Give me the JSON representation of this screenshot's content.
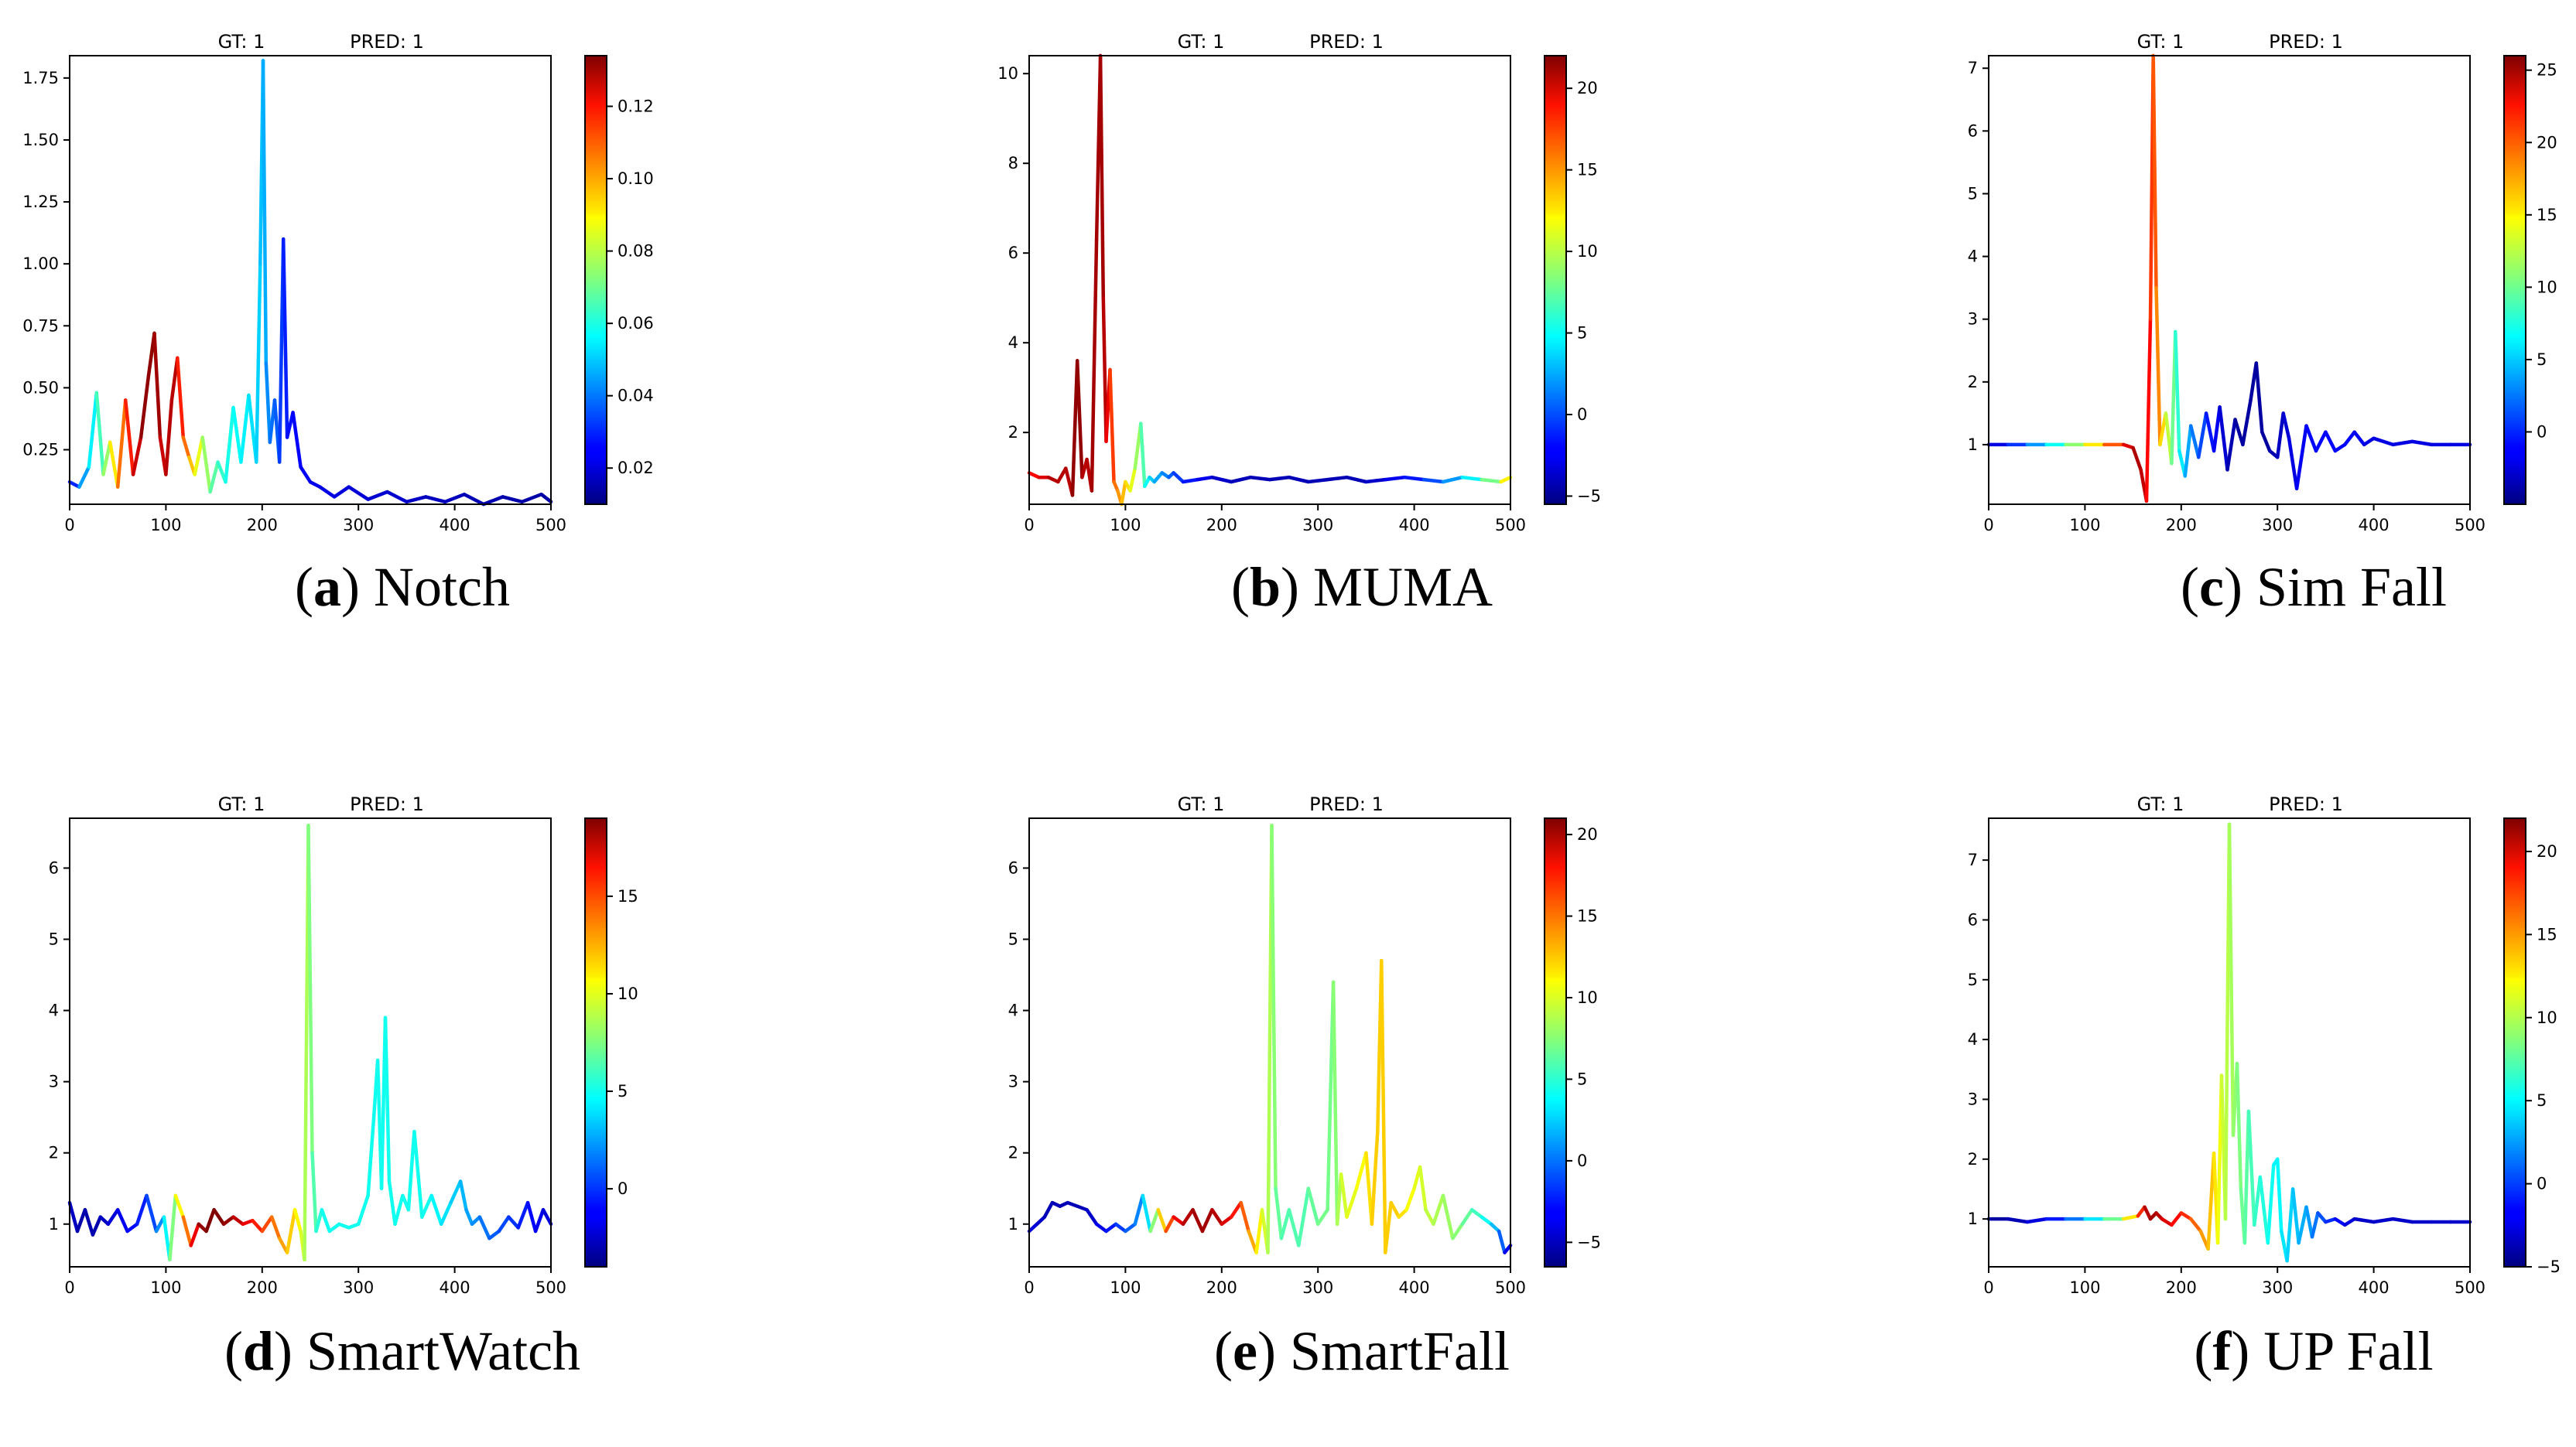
{
  "chart_data": [
    {
      "type": "line",
      "panel": "a",
      "caption": "Notch",
      "title_left": "GT: 1",
      "title_right": "PRED: 1",
      "xlim": [
        0,
        500
      ],
      "ylim": [
        0.03,
        1.84
      ],
      "xticks": [
        "0",
        "100",
        "200",
        "300",
        "400",
        "500"
      ],
      "yticks": [
        0.25,
        0.5,
        0.75,
        1.0,
        1.25,
        1.5,
        1.75
      ],
      "ytick_labels": [
        "0.25",
        "0.50",
        "0.75",
        "1.00",
        "1.25",
        "1.50",
        "1.75"
      ],
      "colorbar": {
        "min": 0.01,
        "max": 0.134,
        "ticks": [
          0.02,
          0.04,
          0.06,
          0.08,
          0.1,
          0.12
        ],
        "tick_labels": [
          "0.02",
          "0.04",
          "0.06",
          "0.08",
          "0.10",
          "0.12"
        ]
      },
      "x": [
        0,
        10,
        20,
        28,
        35,
        42,
        50,
        58,
        66,
        74,
        82,
        88,
        94,
        100,
        106,
        112,
        118,
        124,
        130,
        138,
        146,
        154,
        162,
        170,
        178,
        186,
        194,
        198,
        201,
        204,
        208,
        213,
        218,
        222,
        226,
        232,
        240,
        250,
        260,
        275,
        290,
        310,
        330,
        350,
        370,
        390,
        410,
        430,
        450,
        470,
        490,
        500
      ],
      "y": [
        0.12,
        0.1,
        0.18,
        0.48,
        0.15,
        0.28,
        0.1,
        0.45,
        0.15,
        0.3,
        0.55,
        0.72,
        0.3,
        0.15,
        0.45,
        0.62,
        0.3,
        0.22,
        0.15,
        0.3,
        0.08,
        0.2,
        0.12,
        0.42,
        0.2,
        0.47,
        0.2,
        1.0,
        1.82,
        0.6,
        0.28,
        0.45,
        0.2,
        1.1,
        0.3,
        0.4,
        0.18,
        0.12,
        0.1,
        0.06,
        0.1,
        0.05,
        0.08,
        0.04,
        0.06,
        0.04,
        0.07,
        0.03,
        0.06,
        0.04,
        0.07,
        0.04
      ],
      "c": [
        0.02,
        0.04,
        0.05,
        0.06,
        0.07,
        0.08,
        0.1,
        0.11,
        0.12,
        0.13,
        0.134,
        0.13,
        0.13,
        0.12,
        0.134,
        0.12,
        0.11,
        0.1,
        0.09,
        0.08,
        0.07,
        0.065,
        0.06,
        0.058,
        0.056,
        0.054,
        0.052,
        0.05,
        0.048,
        0.045,
        0.04,
        0.038,
        0.035,
        0.03,
        0.028,
        0.026,
        0.025,
        0.024,
        0.023,
        0.022,
        0.021,
        0.02,
        0.02,
        0.019,
        0.018,
        0.018,
        0.017,
        0.016,
        0.016,
        0.015,
        0.015,
        0.014
      ]
    },
    {
      "type": "line",
      "panel": "b",
      "caption": "MUMA",
      "title_left": "GT: 1",
      "title_right": "PRED: 1",
      "xlim": [
        0,
        500
      ],
      "ylim": [
        0.4,
        10.4
      ],
      "xticks": [
        "0",
        "100",
        "200",
        "300",
        "400",
        "500"
      ],
      "yticks": [
        2,
        4,
        6,
        8,
        10
      ],
      "ytick_labels": [
        "2",
        "4",
        "6",
        "8",
        "10"
      ],
      "colorbar": {
        "min": -5.5,
        "max": 22,
        "ticks": [
          -5,
          0,
          5,
          10,
          15,
          20
        ],
        "tick_labels": [
          "−5",
          "0",
          "5",
          "10",
          "15",
          "20"
        ]
      },
      "x": [
        0,
        10,
        20,
        30,
        38,
        45,
        50,
        55,
        60,
        65,
        70,
        74,
        77,
        80,
        84,
        88,
        92,
        96,
        100,
        105,
        110,
        116,
        120,
        125,
        130,
        138,
        145,
        150,
        160,
        175,
        190,
        210,
        230,
        250,
        270,
        290,
        310,
        330,
        350,
        370,
        390,
        410,
        430,
        450,
        470,
        490,
        500
      ],
      "y": [
        1.1,
        1.0,
        1.0,
        0.9,
        1.2,
        0.6,
        3.6,
        1.0,
        1.4,
        0.7,
        6.3,
        10.4,
        5.0,
        1.8,
        3.4,
        0.9,
        0.7,
        0.4,
        0.9,
        0.7,
        1.2,
        2.2,
        0.8,
        1.0,
        0.9,
        1.1,
        1.0,
        1.1,
        0.9,
        0.95,
        1.0,
        0.9,
        1.0,
        0.95,
        1.0,
        0.9,
        0.95,
        1.0,
        0.9,
        0.95,
        1.0,
        0.95,
        0.9,
        1.0,
        0.95,
        0.9,
        1.0
      ],
      "c": [
        18,
        19,
        20,
        21,
        20,
        21,
        22,
        21,
        20,
        21,
        21,
        21,
        21,
        20,
        18,
        16,
        15,
        14,
        13,
        12,
        10,
        8,
        6,
        4,
        3,
        2,
        1,
        0,
        -1,
        -2,
        -3,
        -4,
        -4,
        -4,
        -4,
        -4,
        -4,
        -4,
        -4,
        -3,
        -2,
        -1,
        1,
        3,
        6,
        10,
        14
      ]
    },
    {
      "type": "line",
      "panel": "c",
      "caption": "Sim Fall",
      "title_left": "GT: 1",
      "title_right": "PRED: 1",
      "xlim": [
        0,
        500
      ],
      "ylim": [
        0.05,
        7.2
      ],
      "xticks": [
        "0",
        "100",
        "200",
        "300",
        "400",
        "500"
      ],
      "yticks": [
        1,
        2,
        3,
        4,
        5,
        6,
        7
      ],
      "ytick_labels": [
        "1",
        "2",
        "3",
        "4",
        "5",
        "6",
        "7"
      ],
      "colorbar": {
        "min": -5,
        "max": 26,
        "ticks": [
          0,
          5,
          10,
          15,
          20,
          25
        ],
        "tick_labels": [
          "0",
          "5",
          "10",
          "15",
          "20",
          "25"
        ]
      },
      "x": [
        0,
        20,
        40,
        60,
        80,
        100,
        120,
        140,
        150,
        158,
        164,
        168,
        171,
        174,
        178,
        184,
        190,
        194,
        198,
        204,
        210,
        218,
        226,
        234,
        240,
        248,
        256,
        264,
        272,
        278,
        284,
        292,
        300,
        306,
        312,
        320,
        330,
        340,
        350,
        360,
        370,
        380,
        390,
        400,
        420,
        440,
        460,
        480,
        500
      ],
      "y": [
        1.0,
        1.0,
        1.0,
        1.0,
        1.0,
        1.0,
        1.0,
        1.0,
        0.95,
        0.6,
        0.1,
        3.0,
        7.2,
        3.5,
        1.0,
        1.5,
        0.7,
        2.8,
        0.9,
        0.5,
        1.3,
        0.8,
        1.5,
        0.9,
        1.6,
        0.6,
        1.4,
        1.0,
        1.7,
        2.3,
        1.2,
        0.9,
        0.8,
        1.5,
        1.1,
        0.3,
        1.3,
        0.9,
        1.2,
        0.9,
        1.0,
        1.2,
        1.0,
        1.1,
        1.0,
        1.05,
        1.0,
        1.0,
        1.0
      ],
      "c": [
        -3,
        -1,
        2,
        5,
        9,
        13,
        17,
        22,
        24,
        25,
        23,
        21,
        20,
        19,
        17,
        14,
        11,
        9,
        7,
        5,
        3,
        2,
        0,
        -1,
        -2,
        -3,
        -4,
        -4,
        -4,
        -4,
        -4,
        -4,
        -3,
        -3,
        -2,
        -2,
        -1,
        -1,
        -1,
        -1,
        -1,
        -1,
        -2,
        -2,
        -2,
        -2,
        -2,
        -2,
        -2
      ]
    },
    {
      "type": "line",
      "panel": "d",
      "caption": "SmartWatch",
      "title_left": "GT: 1",
      "title_right": "PRED: 1",
      "xlim": [
        0,
        500
      ],
      "ylim": [
        0.4,
        6.7
      ],
      "xticks": [
        "0",
        "100",
        "200",
        "300",
        "400",
        "500"
      ],
      "yticks": [
        1,
        2,
        3,
        4,
        5,
        6
      ],
      "ytick_labels": [
        "1",
        "2",
        "3",
        "4",
        "5",
        "6"
      ],
      "colorbar": {
        "min": -4,
        "max": 19,
        "ticks": [
          0,
          5,
          10,
          15
        ],
        "tick_labels": [
          "0",
          "5",
          "10",
          "15"
        ]
      },
      "x": [
        0,
        8,
        16,
        24,
        32,
        40,
        50,
        60,
        70,
        80,
        90,
        98,
        104,
        110,
        118,
        126,
        134,
        142,
        150,
        160,
        170,
        180,
        190,
        200,
        210,
        218,
        226,
        234,
        240,
        244,
        248,
        252,
        256,
        262,
        270,
        280,
        290,
        300,
        310,
        316,
        320,
        324,
        328,
        332,
        338,
        346,
        352,
        358,
        366,
        376,
        386,
        396,
        406,
        412,
        418,
        426,
        436,
        446,
        456,
        466,
        476,
        484,
        492,
        500
      ],
      "y": [
        1.3,
        0.9,
        1.2,
        0.85,
        1.1,
        1.0,
        1.2,
        0.9,
        1.0,
        1.4,
        0.9,
        1.1,
        0.5,
        1.4,
        1.1,
        0.7,
        1.0,
        0.9,
        1.2,
        1.0,
        1.1,
        1.0,
        1.05,
        0.9,
        1.1,
        0.8,
        0.6,
        1.2,
        0.9,
        0.5,
        6.6,
        2.0,
        0.9,
        1.2,
        0.9,
        1.0,
        0.95,
        1.0,
        1.4,
        2.5,
        3.3,
        1.5,
        3.9,
        1.6,
        1.0,
        1.4,
        1.2,
        2.3,
        1.1,
        1.4,
        1.0,
        1.3,
        1.6,
        1.2,
        1.0,
        1.1,
        0.8,
        0.9,
        1.1,
        0.95,
        1.3,
        0.9,
        1.2,
        1.0
      ],
      "c": [
        -2,
        -3,
        -3,
        -3,
        -3,
        -2,
        -2,
        -1,
        -1,
        0,
        1,
        3,
        6,
        9,
        12,
        15,
        18,
        19,
        19,
        19,
        18,
        17,
        16,
        15,
        14,
        13,
        12,
        11,
        10,
        9,
        8,
        7,
        6,
        5,
        5,
        5,
        5,
        5,
        5,
        5,
        5,
        5,
        5,
        5,
        5,
        5,
        5,
        5,
        5,
        5,
        4,
        4,
        3,
        3,
        2,
        2,
        1,
        1,
        0,
        0,
        -1,
        -1,
        -2,
        -2
      ]
    },
    {
      "type": "line",
      "panel": "e",
      "caption": "SmartFall",
      "title_left": "GT: 1",
      "title_right": "PRED: 1",
      "xlim": [
        0,
        500
      ],
      "ylim": [
        0.4,
        6.7
      ],
      "xticks": [
        "0",
        "100",
        "200",
        "300",
        "400",
        "500"
      ],
      "yticks": [
        1,
        2,
        3,
        4,
        5,
        6
      ],
      "ytick_labels": [
        "1",
        "2",
        "3",
        "4",
        "5",
        "6"
      ],
      "colorbar": {
        "min": -6.5,
        "max": 21,
        "ticks": [
          -5,
          0,
          5,
          10,
          15,
          20
        ],
        "tick_labels": [
          "−5",
          "0",
          "5",
          "10",
          "15",
          "20"
        ]
      },
      "x": [
        0,
        8,
        16,
        24,
        32,
        40,
        50,
        60,
        70,
        80,
        90,
        100,
        110,
        118,
        126,
        134,
        142,
        150,
        160,
        170,
        180,
        190,
        200,
        210,
        220,
        228,
        236,
        242,
        248,
        252,
        256,
        262,
        270,
        280,
        290,
        300,
        310,
        316,
        320,
        324,
        330,
        340,
        350,
        356,
        362,
        366,
        370,
        376,
        384,
        392,
        400,
        406,
        412,
        420,
        430,
        440,
        450,
        460,
        470,
        480,
        488,
        494,
        500
      ],
      "y": [
        0.9,
        1.0,
        1.1,
        1.3,
        1.25,
        1.3,
        1.25,
        1.2,
        1.0,
        0.9,
        1.0,
        0.9,
        1.0,
        1.4,
        0.9,
        1.2,
        0.9,
        1.1,
        1.0,
        1.2,
        0.9,
        1.2,
        1.0,
        1.1,
        1.3,
        0.9,
        0.6,
        1.2,
        0.6,
        6.6,
        1.5,
        0.8,
        1.2,
        0.7,
        1.5,
        1.0,
        1.2,
        4.4,
        1.0,
        1.7,
        1.1,
        1.5,
        2.0,
        1.0,
        2.3,
        4.7,
        0.6,
        1.3,
        1.1,
        1.2,
        1.5,
        1.8,
        1.2,
        1.0,
        1.4,
        0.8,
        1.0,
        1.2,
        1.1,
        1.0,
        0.9,
        0.6,
        0.7
      ],
      "c": [
        -4,
        -4,
        -5,
        -5,
        -5,
        -5,
        -5,
        -5,
        -4,
        -3,
        -2,
        -1,
        0,
        1,
        5,
        10,
        14,
        17,
        19,
        20,
        20,
        20,
        19,
        18,
        16,
        14,
        12,
        10,
        9,
        8,
        7,
        6,
        6,
        6,
        6,
        7,
        7,
        7,
        8,
        9,
        10,
        10,
        11,
        12,
        12,
        12,
        12,
        12,
        12,
        11,
        10,
        10,
        9,
        9,
        8,
        8,
        7,
        6,
        5,
        3,
        1,
        -2,
        -5
      ]
    },
    {
      "type": "line",
      "panel": "f",
      "caption": "UP Fall",
      "title_left": "GT: 1",
      "title_right": "PRED: 1",
      "xlim": [
        0,
        500
      ],
      "ylim": [
        0.2,
        7.7
      ],
      "xticks": [
        "0",
        "100",
        "200",
        "300",
        "400",
        "500"
      ],
      "yticks": [
        1,
        2,
        3,
        4,
        5,
        6,
        7
      ],
      "ytick_labels": [
        "1",
        "2",
        "3",
        "4",
        "5",
        "6",
        "7"
      ],
      "colorbar": {
        "min": -5,
        "max": 22,
        "ticks": [
          -5,
          0,
          5,
          10,
          15,
          20
        ],
        "tick_labels": [
          "−5",
          "0",
          "5",
          "10",
          "15",
          "20"
        ]
      },
      "x": [
        0,
        20,
        40,
        60,
        80,
        100,
        120,
        140,
        155,
        162,
        168,
        174,
        180,
        190,
        200,
        210,
        220,
        228,
        234,
        238,
        242,
        246,
        250,
        254,
        258,
        262,
        266,
        270,
        276,
        282,
        290,
        296,
        300,
        304,
        310,
        316,
        322,
        330,
        336,
        342,
        350,
        360,
        370,
        380,
        400,
        420,
        440,
        460,
        480,
        500
      ],
      "y": [
        1.0,
        1.0,
        0.95,
        1.0,
        1.0,
        1.0,
        1.0,
        1.0,
        1.05,
        1.2,
        1.0,
        1.1,
        1.0,
        0.9,
        1.1,
        1.0,
        0.8,
        0.5,
        2.1,
        0.6,
        3.4,
        1.0,
        7.6,
        2.4,
        3.6,
        1.5,
        0.6,
        2.8,
        0.9,
        1.7,
        0.6,
        1.9,
        2.0,
        0.8,
        0.3,
        1.5,
        0.6,
        1.2,
        0.7,
        1.1,
        0.95,
        1.0,
        0.9,
        1.0,
        0.95,
        1.0,
        0.95,
        0.95,
        0.95,
        0.95
      ],
      "c": [
        -4,
        -4,
        -3,
        -2,
        0,
        3,
        6,
        10,
        15,
        20,
        21,
        21,
        20,
        19,
        18,
        17,
        15,
        14,
        13,
        12,
        11,
        10,
        10,
        9,
        9,
        8,
        8,
        7,
        7,
        6,
        6,
        5,
        5,
        5,
        4,
        4,
        3,
        3,
        2,
        1,
        0,
        -1,
        -2,
        -3,
        -3,
        -3,
        -3,
        -3,
        -3,
        -3
      ]
    }
  ]
}
